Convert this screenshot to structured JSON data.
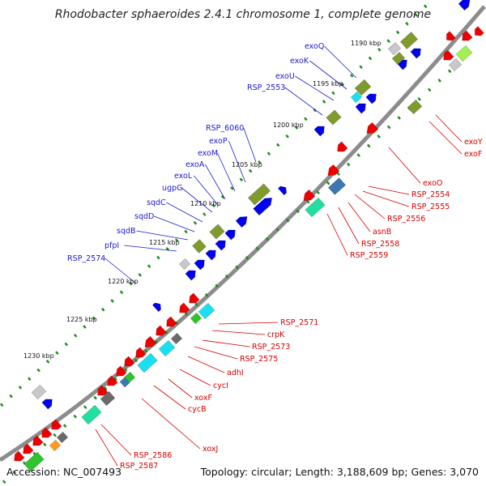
{
  "title": "Rhodobacter sphaeroides 2.4.1 chromosome 1, complete genome",
  "footer": {
    "accession": "Accession: NC_007493",
    "stats": "Topology: circular; Length: 3,188,609 bp; Genes: 3,070"
  },
  "colors": {
    "backbone": "#8c8c8c",
    "blue_genes": "#0000ee",
    "red_genes": "#ee0000",
    "olive_cog": "#7f9a2d",
    "cyan_cog": "#19e0f0",
    "green_cog": "#2ec42e",
    "teal_cog": "#1fe0a0",
    "steel_cog": "#3c78b0",
    "lime_cog": "#a0f050",
    "grey_cog": "#6a6a6a",
    "silver_cog": "#c8c8c8",
    "orange_cog": "#ff9a20",
    "gc_ticks": "#1f8c1f",
    "label_blue": "#1a1ad0",
    "label_red": "#d40000"
  },
  "kbp_marks": [
    "1190 kbp",
    "1195 kbp",
    "1200 kbp",
    "1205 kbp",
    "1210 kbp",
    "1215 kbp",
    "1220 kbp",
    "1225 kbp",
    "1230 kbp"
  ],
  "labels_left": [
    "exoQ",
    "exoK",
    "exoU",
    "RSP_2553",
    "RSP_6060",
    "exoP",
    "exoM",
    "exoA",
    "exoL",
    "ugpG",
    "sqdC",
    "sqdD",
    "sqdB",
    "pfpI",
    "RSP_2574"
  ],
  "labels_right": [
    "exoY",
    "exoF",
    "exoO",
    "RSP_2554",
    "RSP_2555",
    "RSP_2556",
    "asnB",
    "RSP_2558",
    "RSP_2559",
    "RSP_2571",
    "crpK",
    "RSP_2573",
    "RSP_2575",
    "adhI",
    "cycI",
    "xoxF",
    "cycB",
    "xoxJ",
    "RSP_2586",
    "RSP_2587"
  ]
}
